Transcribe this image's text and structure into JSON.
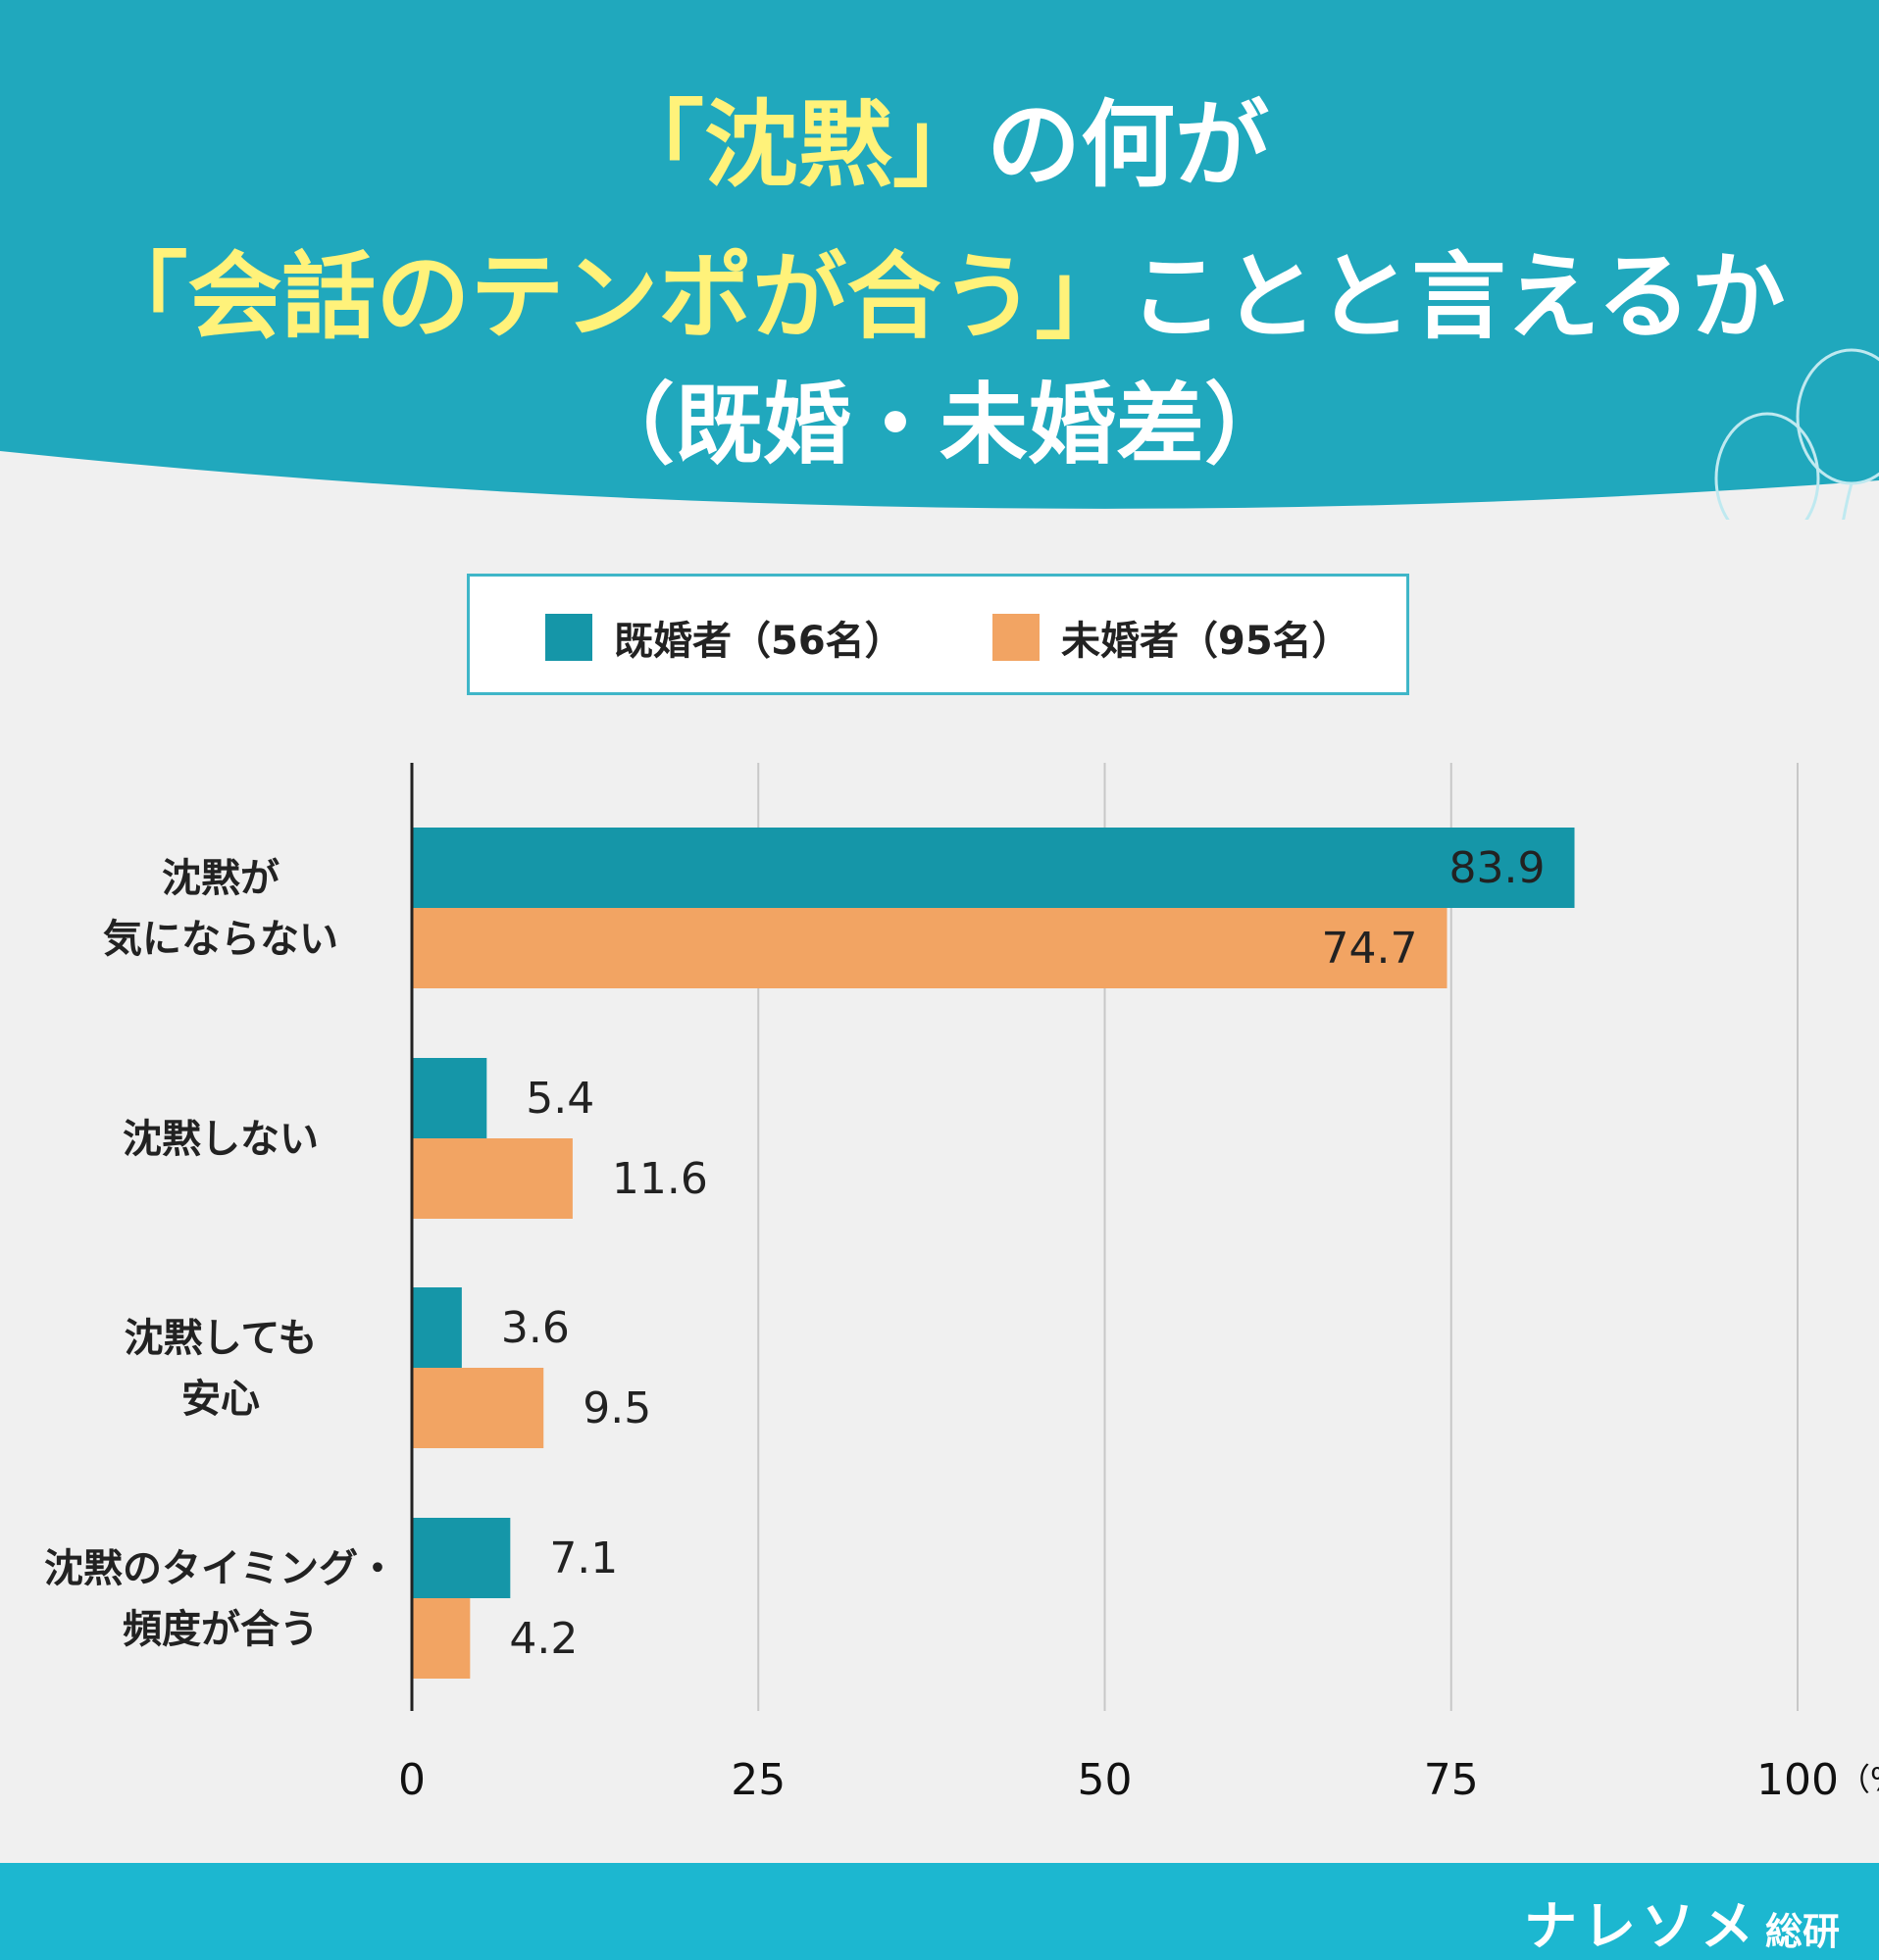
{
  "colors": {
    "header_bg": "#20a8bd",
    "highlight_text": "#fff27a",
    "married": "#1596a8",
    "single": "#f2a463",
    "background": "#f0f0f0",
    "footer_bg": "#1cb7d0"
  },
  "title": {
    "line1_highlight": "「沈黙」",
    "line1_rest": "の何が",
    "line2_highlight": "「会話のテンポが合う」",
    "line2_rest": "ことと言えるか",
    "line3": "（既婚・未婚差）"
  },
  "legend": {
    "married": "既婚者（56名）",
    "single": "未婚者（95名）"
  },
  "chart_data": {
    "type": "bar",
    "orientation": "horizontal",
    "categories": [
      [
        "沈黙が",
        "気にならない"
      ],
      [
        "沈黙しない"
      ],
      [
        "沈黙しても",
        "安心"
      ],
      [
        "沈黙のタイミング・",
        "頻度が合う"
      ]
    ],
    "series": [
      {
        "name": "既婚者（56名）",
        "values": [
          83.9,
          5.4,
          3.6,
          7.1
        ],
        "value_labels": [
          "83.9",
          "5.4",
          "3.6",
          "7.1"
        ]
      },
      {
        "name": "未婚者（95名）",
        "values": [
          74.7,
          11.6,
          9.5,
          4.2
        ],
        "value_labels": [
          "74.7",
          "11.6",
          "9.5",
          "4.2"
        ]
      }
    ],
    "xlim": [
      0,
      100
    ],
    "x_ticks": [
      "0",
      "25",
      "50",
      "75",
      "100"
    ],
    "x_unit": "（%）",
    "grid": true,
    "legend_position": "top"
  },
  "footer": {
    "brand_main": "ナレソメ",
    "brand_sub": "総研"
  },
  "icons": [
    "balloon-icon"
  ]
}
